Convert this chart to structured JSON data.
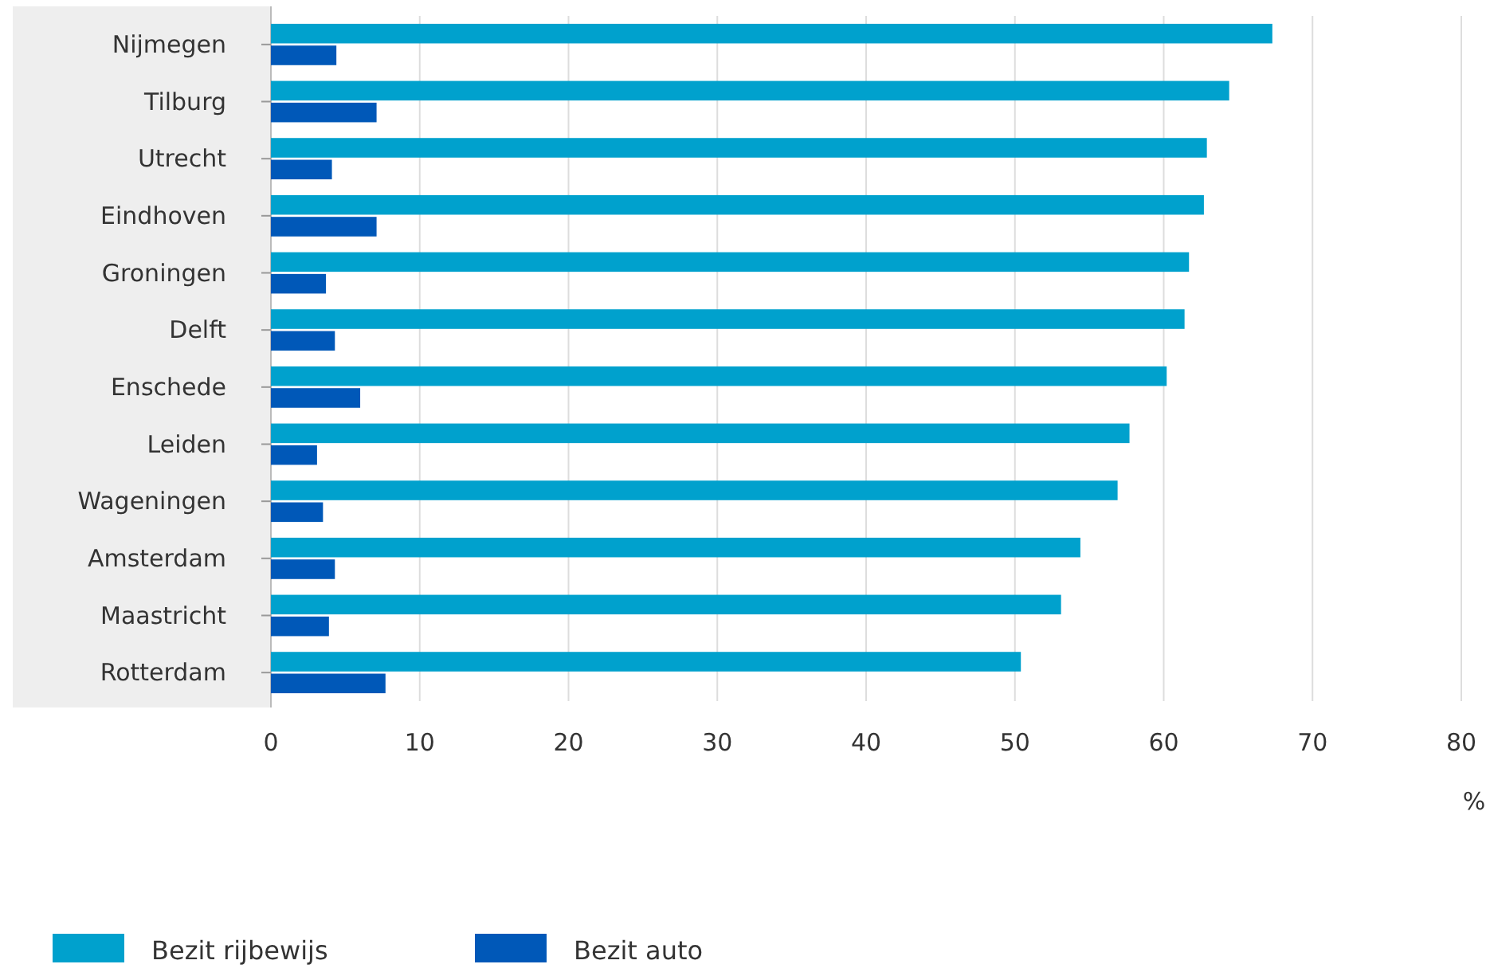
{
  "chart_data": {
    "type": "bar",
    "orientation": "horizontal",
    "categories": [
      "Nijmegen",
      "Tilburg",
      "Utrecht",
      "Eindhoven",
      "Groningen",
      "Delft",
      "Enschede",
      "Leiden",
      "Wageningen",
      "Amsterdam",
      "Maastricht",
      "Rotterdam"
    ],
    "series": [
      {
        "name": "Bezit rijbewijs",
        "color": "#00a1cd",
        "values": [
          67.3,
          64.4,
          62.9,
          62.7,
          61.7,
          61.4,
          60.2,
          57.7,
          56.9,
          54.4,
          53.1,
          50.4
        ]
      },
      {
        "name": "Bezit auto",
        "color": "#0058b8",
        "values": [
          4.4,
          7.1,
          4.1,
          7.1,
          3.7,
          4.3,
          6.0,
          3.1,
          3.5,
          4.3,
          3.9,
          7.7
        ]
      }
    ],
    "xlabel": "%",
    "xlim": [
      0,
      80
    ],
    "xticks": [
      0,
      10,
      20,
      30,
      40,
      50,
      60,
      70,
      80
    ],
    "grid": "x",
    "legend": "bottom left"
  }
}
